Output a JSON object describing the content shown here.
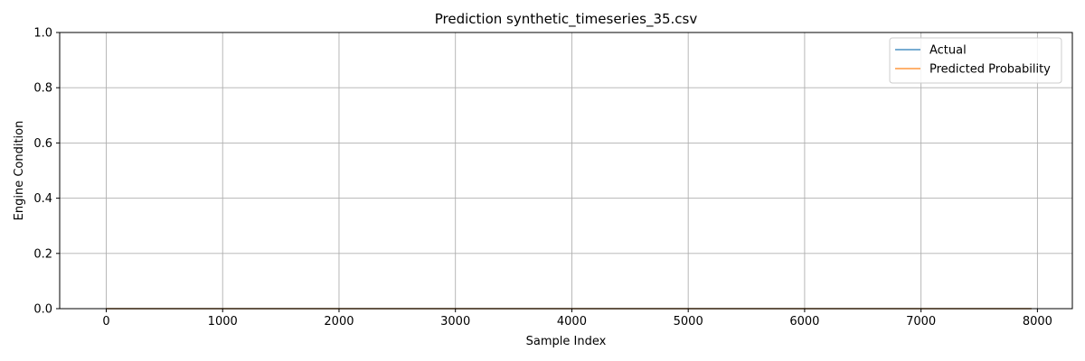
{
  "chart_data": {
    "type": "line",
    "title": "Prediction  synthetic_timeseries_35.csv",
    "xlabel": "Sample Index",
    "ylabel": "Engine Condition",
    "xlim": [
      -400,
      8300
    ],
    "ylim": [
      0,
      1
    ],
    "xticks": [
      0,
      1000,
      2000,
      3000,
      4000,
      5000,
      6000,
      7000,
      8000
    ],
    "xtick_labels": [
      "0",
      "1000",
      "2000",
      "3000",
      "4000",
      "5000",
      "6000",
      "7000",
      "8000"
    ],
    "yticks": [
      0,
      0.2,
      0.4,
      0.6,
      0.8,
      1.0
    ],
    "ytick_labels": [
      "0.0",
      "0.2",
      "0.4",
      "0.6",
      "0.8",
      "1.0"
    ],
    "grid": true,
    "legend_position": "top-right",
    "series": [
      {
        "name": "Actual",
        "color": "#1f77b4",
        "x": [
          0,
          7950
        ],
        "y": [
          0,
          0
        ]
      },
      {
        "name": "Predicted Probability",
        "color": "#ff7f0e",
        "x": [
          0,
          7950
        ],
        "y": [
          0,
          0
        ]
      }
    ]
  }
}
